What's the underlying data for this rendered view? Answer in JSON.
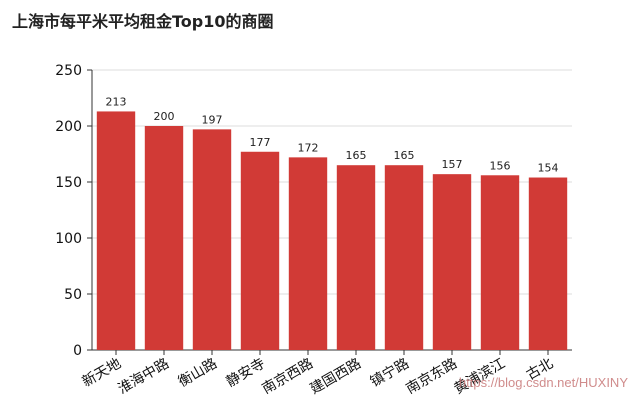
{
  "chart_data": {
    "type": "bar",
    "title": "上海市每平米平均租金Top10的商圈",
    "categories": [
      "新天地",
      "淮海中路",
      "衡山路",
      "静安寺",
      "南京西路",
      "建国西路",
      "镇宁路",
      "南京东路",
      "黄浦滨江",
      "古北"
    ],
    "values": [
      213,
      200,
      197,
      177,
      172,
      165,
      165,
      157,
      156,
      154
    ],
    "ylim": [
      0,
      250
    ],
    "yticks": [
      0,
      50,
      100,
      150,
      200,
      250
    ],
    "grid": true,
    "bar_color": "#d13a36"
  },
  "watermark": "https://blog.csdn.net/HUXINY"
}
